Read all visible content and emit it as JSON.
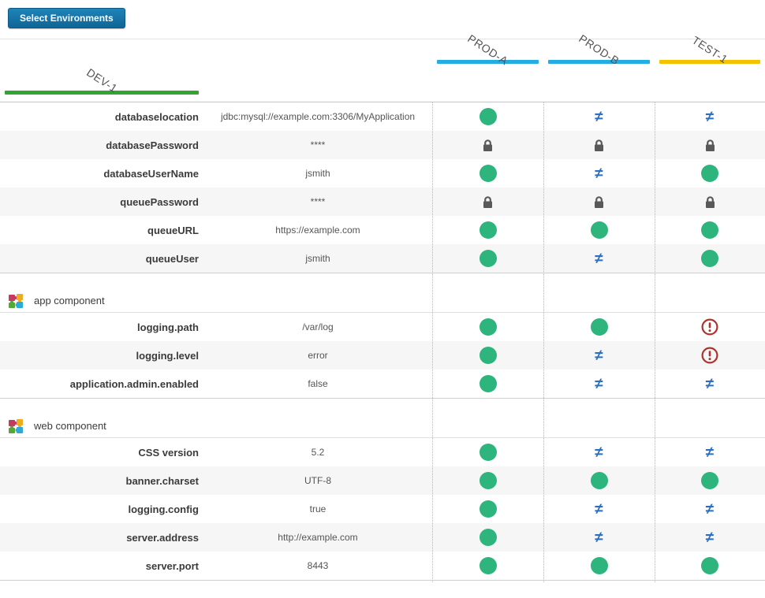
{
  "toolbar": {
    "select_environments_label": "Select Environments"
  },
  "environments": [
    {
      "name": "PROD-A",
      "underline_color": "#25ace3",
      "shows": "values"
    },
    {
      "name": "PROD-B",
      "underline_color": "#25ace3",
      "shows": "status"
    },
    {
      "name": "TEST-1",
      "underline_color": "#f3c301",
      "shows": "status"
    },
    {
      "name": "DEV-1",
      "underline_color": "#33a434",
      "shows": "status"
    }
  ],
  "status_colors": {
    "equal": "#2eb57d",
    "not_equal": "#2b6fc0",
    "secured": "#595959",
    "warning": "#ad332c"
  },
  "groups": [
    {
      "component": null,
      "rows": [
        {
          "property": "databaselocation",
          "value": "jdbc:mysql://example.com:3306/MyApplication",
          "statuses": [
            "equal",
            "not_equal",
            "not_equal"
          ]
        },
        {
          "property": "databasePassword",
          "value": "****",
          "statuses": [
            "secured",
            "secured",
            "secured"
          ]
        },
        {
          "property": "databaseUserName",
          "value": "jsmith",
          "statuses": [
            "equal",
            "not_equal",
            "equal"
          ]
        },
        {
          "property": "queuePassword",
          "value": "****",
          "statuses": [
            "secured",
            "secured",
            "secured"
          ]
        },
        {
          "property": "queueURL",
          "value": "https://example.com",
          "statuses": [
            "equal",
            "equal",
            "equal"
          ]
        },
        {
          "property": "queueUser",
          "value": "jsmith",
          "statuses": [
            "equal",
            "not_equal",
            "equal"
          ]
        }
      ]
    },
    {
      "component": "app component",
      "rows": [
        {
          "property": "logging.path",
          "value": "/var/log",
          "statuses": [
            "equal",
            "equal",
            "warning"
          ]
        },
        {
          "property": "logging.level",
          "value": "error",
          "statuses": [
            "equal",
            "not_equal",
            "warning"
          ]
        },
        {
          "property": "application.admin.enabled",
          "value": "false",
          "statuses": [
            "equal",
            "not_equal",
            "not_equal"
          ]
        }
      ]
    },
    {
      "component": "web component",
      "rows": [
        {
          "property": "CSS version",
          "value": "5.2",
          "statuses": [
            "equal",
            "not_equal",
            "not_equal"
          ]
        },
        {
          "property": "banner.charset",
          "value": "UTF-8",
          "statuses": [
            "equal",
            "equal",
            "equal"
          ]
        },
        {
          "property": "logging.config",
          "value": "true",
          "statuses": [
            "equal",
            "not_equal",
            "not_equal"
          ]
        },
        {
          "property": "server.address",
          "value": "http://example.com",
          "statuses": [
            "equal",
            "not_equal",
            "not_equal"
          ]
        },
        {
          "property": "server.port",
          "value": "8443",
          "statuses": [
            "equal",
            "equal",
            "equal"
          ]
        }
      ]
    }
  ]
}
